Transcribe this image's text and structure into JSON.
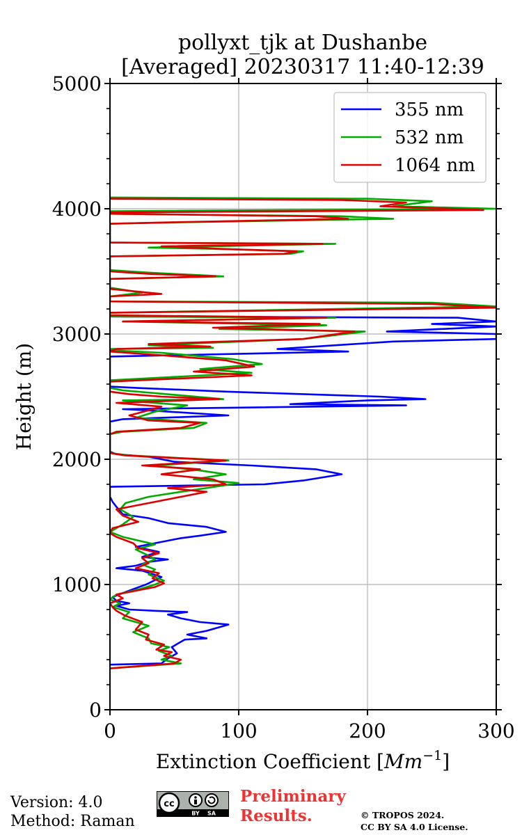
{
  "chart_data": {
    "type": "line",
    "title": "pollyxt_tjk at Dushanbe",
    "subtitle": "[Averaged] 20230317 11:40-12:39",
    "xlabel": "Extinction Coefficient [Mm⁻¹]",
    "xlabel_main": "Extinction Coefficient [",
    "xlabel_unit": "Mm",
    "xlabel_exp": "−1",
    "xlabel_close": "]",
    "ylabel": "Height (m)",
    "xlim": [
      0,
      300
    ],
    "ylim": [
      0,
      5000
    ],
    "xticks": [
      0,
      100,
      200,
      300
    ],
    "yticks": [
      0,
      1000,
      2000,
      3000,
      4000,
      5000
    ],
    "grid": true,
    "legend_position": "top-right",
    "series": [
      {
        "name": "355 nm",
        "color": "#0000ff",
        "points": [
          [
            0,
            360
          ],
          [
            40,
            370
          ],
          [
            45,
            410
          ],
          [
            52,
            450
          ],
          [
            48,
            500
          ],
          [
            58,
            560
          ],
          [
            75,
            570
          ],
          [
            60,
            600
          ],
          [
            75,
            630
          ],
          [
            92,
            680
          ],
          [
            70,
            700
          ],
          [
            55,
            730
          ],
          [
            45,
            760
          ],
          [
            60,
            780
          ],
          [
            35,
            790
          ],
          [
            15,
            800
          ],
          [
            5,
            830
          ],
          [
            15,
            850
          ],
          [
            5,
            870
          ],
          [
            2,
            900
          ],
          [
            12,
            940
          ],
          [
            28,
            1000
          ],
          [
            40,
            1060
          ],
          [
            25,
            1110
          ],
          [
            5,
            1130
          ],
          [
            20,
            1150
          ],
          [
            30,
            1180
          ],
          [
            45,
            1200
          ],
          [
            25,
            1220
          ],
          [
            38,
            1260
          ],
          [
            20,
            1300
          ],
          [
            35,
            1330
          ],
          [
            55,
            1370
          ],
          [
            70,
            1390
          ],
          [
            90,
            1420
          ],
          [
            75,
            1460
          ],
          [
            45,
            1490
          ],
          [
            30,
            1530
          ],
          [
            10,
            1560
          ],
          [
            5,
            1620
          ],
          [
            2,
            1660
          ],
          [
            0,
            1700
          ],
          [
            0,
            1780
          ],
          [
            120,
            1800
          ],
          [
            150,
            1830
          ],
          [
            180,
            1880
          ],
          [
            160,
            1920
          ],
          [
            110,
            1950
          ],
          [
            50,
            1980
          ],
          [
            30,
            2020
          ],
          [
            5,
            2040
          ],
          [
            0,
            2060
          ],
          [
            0,
            2300
          ],
          [
            10,
            2320
          ],
          [
            92,
            2350
          ],
          [
            30,
            2390
          ],
          [
            10,
            2400
          ],
          [
            230,
            2430
          ],
          [
            140,
            2440
          ],
          [
            200,
            2470
          ],
          [
            245,
            2480
          ],
          [
            210,
            2500
          ],
          [
            150,
            2520
          ],
          [
            90,
            2540
          ],
          [
            20,
            2570
          ],
          [
            0,
            2580
          ],
          [
            0,
            2820
          ],
          [
            185,
            2860
          ],
          [
            130,
            2880
          ],
          [
            220,
            2940
          ],
          [
            300,
            2960
          ],
          [
            300,
            3000
          ],
          [
            215,
            3020
          ],
          [
            300,
            3060
          ],
          [
            250,
            3080
          ],
          [
            300,
            3100
          ],
          [
            270,
            3130
          ],
          [
            0,
            3140
          ]
        ]
      },
      {
        "name": "532 nm",
        "color": "#00aa00",
        "points": [
          [
            0,
            330
          ],
          [
            55,
            370
          ],
          [
            40,
            400
          ],
          [
            48,
            430
          ],
          [
            38,
            470
          ],
          [
            46,
            500
          ],
          [
            32,
            530
          ],
          [
            30,
            570
          ],
          [
            18,
            620
          ],
          [
            30,
            670
          ],
          [
            10,
            730
          ],
          [
            15,
            780
          ],
          [
            2,
            820
          ],
          [
            8,
            850
          ],
          [
            0,
            880
          ],
          [
            5,
            920
          ],
          [
            22,
            960
          ],
          [
            35,
            1000
          ],
          [
            42,
            1030
          ],
          [
            30,
            1080
          ],
          [
            35,
            1120
          ],
          [
            25,
            1160
          ],
          [
            35,
            1200
          ],
          [
            28,
            1240
          ],
          [
            20,
            1280
          ],
          [
            35,
            1320
          ],
          [
            10,
            1380
          ],
          [
            0,
            1420
          ],
          [
            10,
            1480
          ],
          [
            18,
            1540
          ],
          [
            8,
            1600
          ],
          [
            12,
            1650
          ],
          [
            30,
            1700
          ],
          [
            55,
            1740
          ],
          [
            75,
            1770
          ],
          [
            100,
            1810
          ],
          [
            65,
            1840
          ],
          [
            90,
            1880
          ],
          [
            70,
            1910
          ],
          [
            35,
            1950
          ],
          [
            92,
            1990
          ],
          [
            15,
            2030
          ],
          [
            0,
            2050
          ],
          [
            0,
            2200
          ],
          [
            10,
            2220
          ],
          [
            65,
            2250
          ],
          [
            75,
            2290
          ],
          [
            20,
            2330
          ],
          [
            35,
            2380
          ],
          [
            60,
            2430
          ],
          [
            10,
            2470
          ],
          [
            88,
            2480
          ],
          [
            55,
            2510
          ],
          [
            10,
            2550
          ],
          [
            0,
            2570
          ],
          [
            0,
            2630
          ],
          [
            110,
            2690
          ],
          [
            70,
            2720
          ],
          [
            118,
            2760
          ],
          [
            95,
            2800
          ],
          [
            40,
            2850
          ],
          [
            0,
            2870
          ],
          [
            0,
            2880
          ],
          [
            80,
            2890
          ],
          [
            30,
            2910
          ],
          [
            150,
            2960
          ],
          [
            198,
            3020
          ],
          [
            85,
            3040
          ],
          [
            168,
            3070
          ],
          [
            10,
            3100
          ],
          [
            175,
            3130
          ],
          [
            0,
            3140
          ],
          [
            0,
            3170
          ],
          [
            300,
            3220
          ],
          [
            250,
            3250
          ],
          [
            0,
            3260
          ],
          [
            0,
            3300
          ],
          [
            25,
            3330
          ],
          [
            0,
            3370
          ],
          [
            0,
            3440
          ],
          [
            88,
            3460
          ],
          [
            30,
            3490
          ],
          [
            0,
            3510
          ],
          [
            0,
            3620
          ],
          [
            140,
            3640
          ],
          [
            150,
            3660
          ],
          [
            80,
            3680
          ],
          [
            30,
            3690
          ],
          [
            175,
            3720
          ],
          [
            0,
            3730
          ],
          [
            0,
            3880
          ],
          [
            45,
            3890
          ],
          [
            220,
            3920
          ],
          [
            180,
            3940
          ],
          [
            0,
            3960
          ],
          [
            0,
            3980
          ],
          [
            300,
            4000
          ],
          [
            220,
            4020
          ],
          [
            250,
            4060
          ],
          [
            200,
            4080
          ],
          [
            0,
            4090
          ]
        ]
      },
      {
        "name": "1064 nm",
        "color": "#dd0000",
        "points": [
          [
            0,
            330
          ],
          [
            50,
            370
          ],
          [
            55,
            400
          ],
          [
            42,
            430
          ],
          [
            48,
            460
          ],
          [
            36,
            480
          ],
          [
            42,
            520
          ],
          [
            28,
            560
          ],
          [
            30,
            600
          ],
          [
            20,
            640
          ],
          [
            25,
            700
          ],
          [
            12,
            750
          ],
          [
            5,
            790
          ],
          [
            2,
            820
          ],
          [
            0,
            850
          ],
          [
            10,
            890
          ],
          [
            5,
            920
          ],
          [
            20,
            950
          ],
          [
            35,
            980
          ],
          [
            42,
            1010
          ],
          [
            33,
            1050
          ],
          [
            38,
            1090
          ],
          [
            20,
            1130
          ],
          [
            30,
            1170
          ],
          [
            25,
            1210
          ],
          [
            38,
            1250
          ],
          [
            22,
            1290
          ],
          [
            18,
            1330
          ],
          [
            5,
            1380
          ],
          [
            0,
            1410
          ],
          [
            2,
            1450
          ],
          [
            22,
            1500
          ],
          [
            10,
            1550
          ],
          [
            5,
            1600
          ],
          [
            30,
            1650
          ],
          [
            55,
            1700
          ],
          [
            75,
            1740
          ],
          [
            45,
            1770
          ],
          [
            90,
            1800
          ],
          [
            80,
            1840
          ],
          [
            40,
            1880
          ],
          [
            70,
            1920
          ],
          [
            25,
            1950
          ],
          [
            90,
            1990
          ],
          [
            12,
            2030
          ],
          [
            0,
            2050
          ],
          [
            0,
            2200
          ],
          [
            5,
            2220
          ],
          [
            55,
            2250
          ],
          [
            70,
            2290
          ],
          [
            30,
            2310
          ],
          [
            15,
            2350
          ],
          [
            30,
            2390
          ],
          [
            40,
            2420
          ],
          [
            5,
            2450
          ],
          [
            85,
            2480
          ],
          [
            40,
            2500
          ],
          [
            15,
            2520
          ],
          [
            0,
            2540
          ],
          [
            0,
            2620
          ],
          [
            110,
            2670
          ],
          [
            65,
            2700
          ],
          [
            112,
            2740
          ],
          [
            90,
            2790
          ],
          [
            40,
            2830
          ],
          [
            0,
            2860
          ],
          [
            5,
            2880
          ],
          [
            78,
            2900
          ],
          [
            30,
            2920
          ],
          [
            150,
            2960
          ],
          [
            190,
            3020
          ],
          [
            80,
            3050
          ],
          [
            163,
            3080
          ],
          [
            10,
            3100
          ],
          [
            168,
            3130
          ],
          [
            0,
            3150
          ],
          [
            0,
            3170
          ],
          [
            300,
            3210
          ],
          [
            250,
            3240
          ],
          [
            0,
            3260
          ],
          [
            0,
            3300
          ],
          [
            40,
            3320
          ],
          [
            0,
            3360
          ],
          [
            0,
            3440
          ],
          [
            82,
            3460
          ],
          [
            30,
            3480
          ],
          [
            0,
            3500
          ],
          [
            0,
            3620
          ],
          [
            135,
            3640
          ],
          [
            145,
            3660
          ],
          [
            85,
            3680
          ],
          [
            40,
            3700
          ],
          [
            165,
            3720
          ],
          [
            0,
            3730
          ],
          [
            0,
            3880
          ],
          [
            40,
            3890
          ],
          [
            185,
            3920
          ],
          [
            160,
            3940
          ],
          [
            0,
            3960
          ],
          [
            0,
            3970
          ],
          [
            290,
            3990
          ],
          [
            210,
            4020
          ],
          [
            230,
            4050
          ],
          [
            180,
            4070
          ],
          [
            0,
            4080
          ]
        ]
      }
    ]
  },
  "footer": {
    "version": "Version: 4.0",
    "method": "Method: Raman",
    "preliminary_line1": "Preliminary",
    "preliminary_line2": "Results.",
    "copyright_line1": "© TROPOS 2024.",
    "copyright_line2": "CC BY SA 4.0 License.",
    "badge": {
      "cc": "cc",
      "by": "BY",
      "sa": "SA"
    },
    "colors": {
      "preliminary": "#ee3333"
    }
  }
}
